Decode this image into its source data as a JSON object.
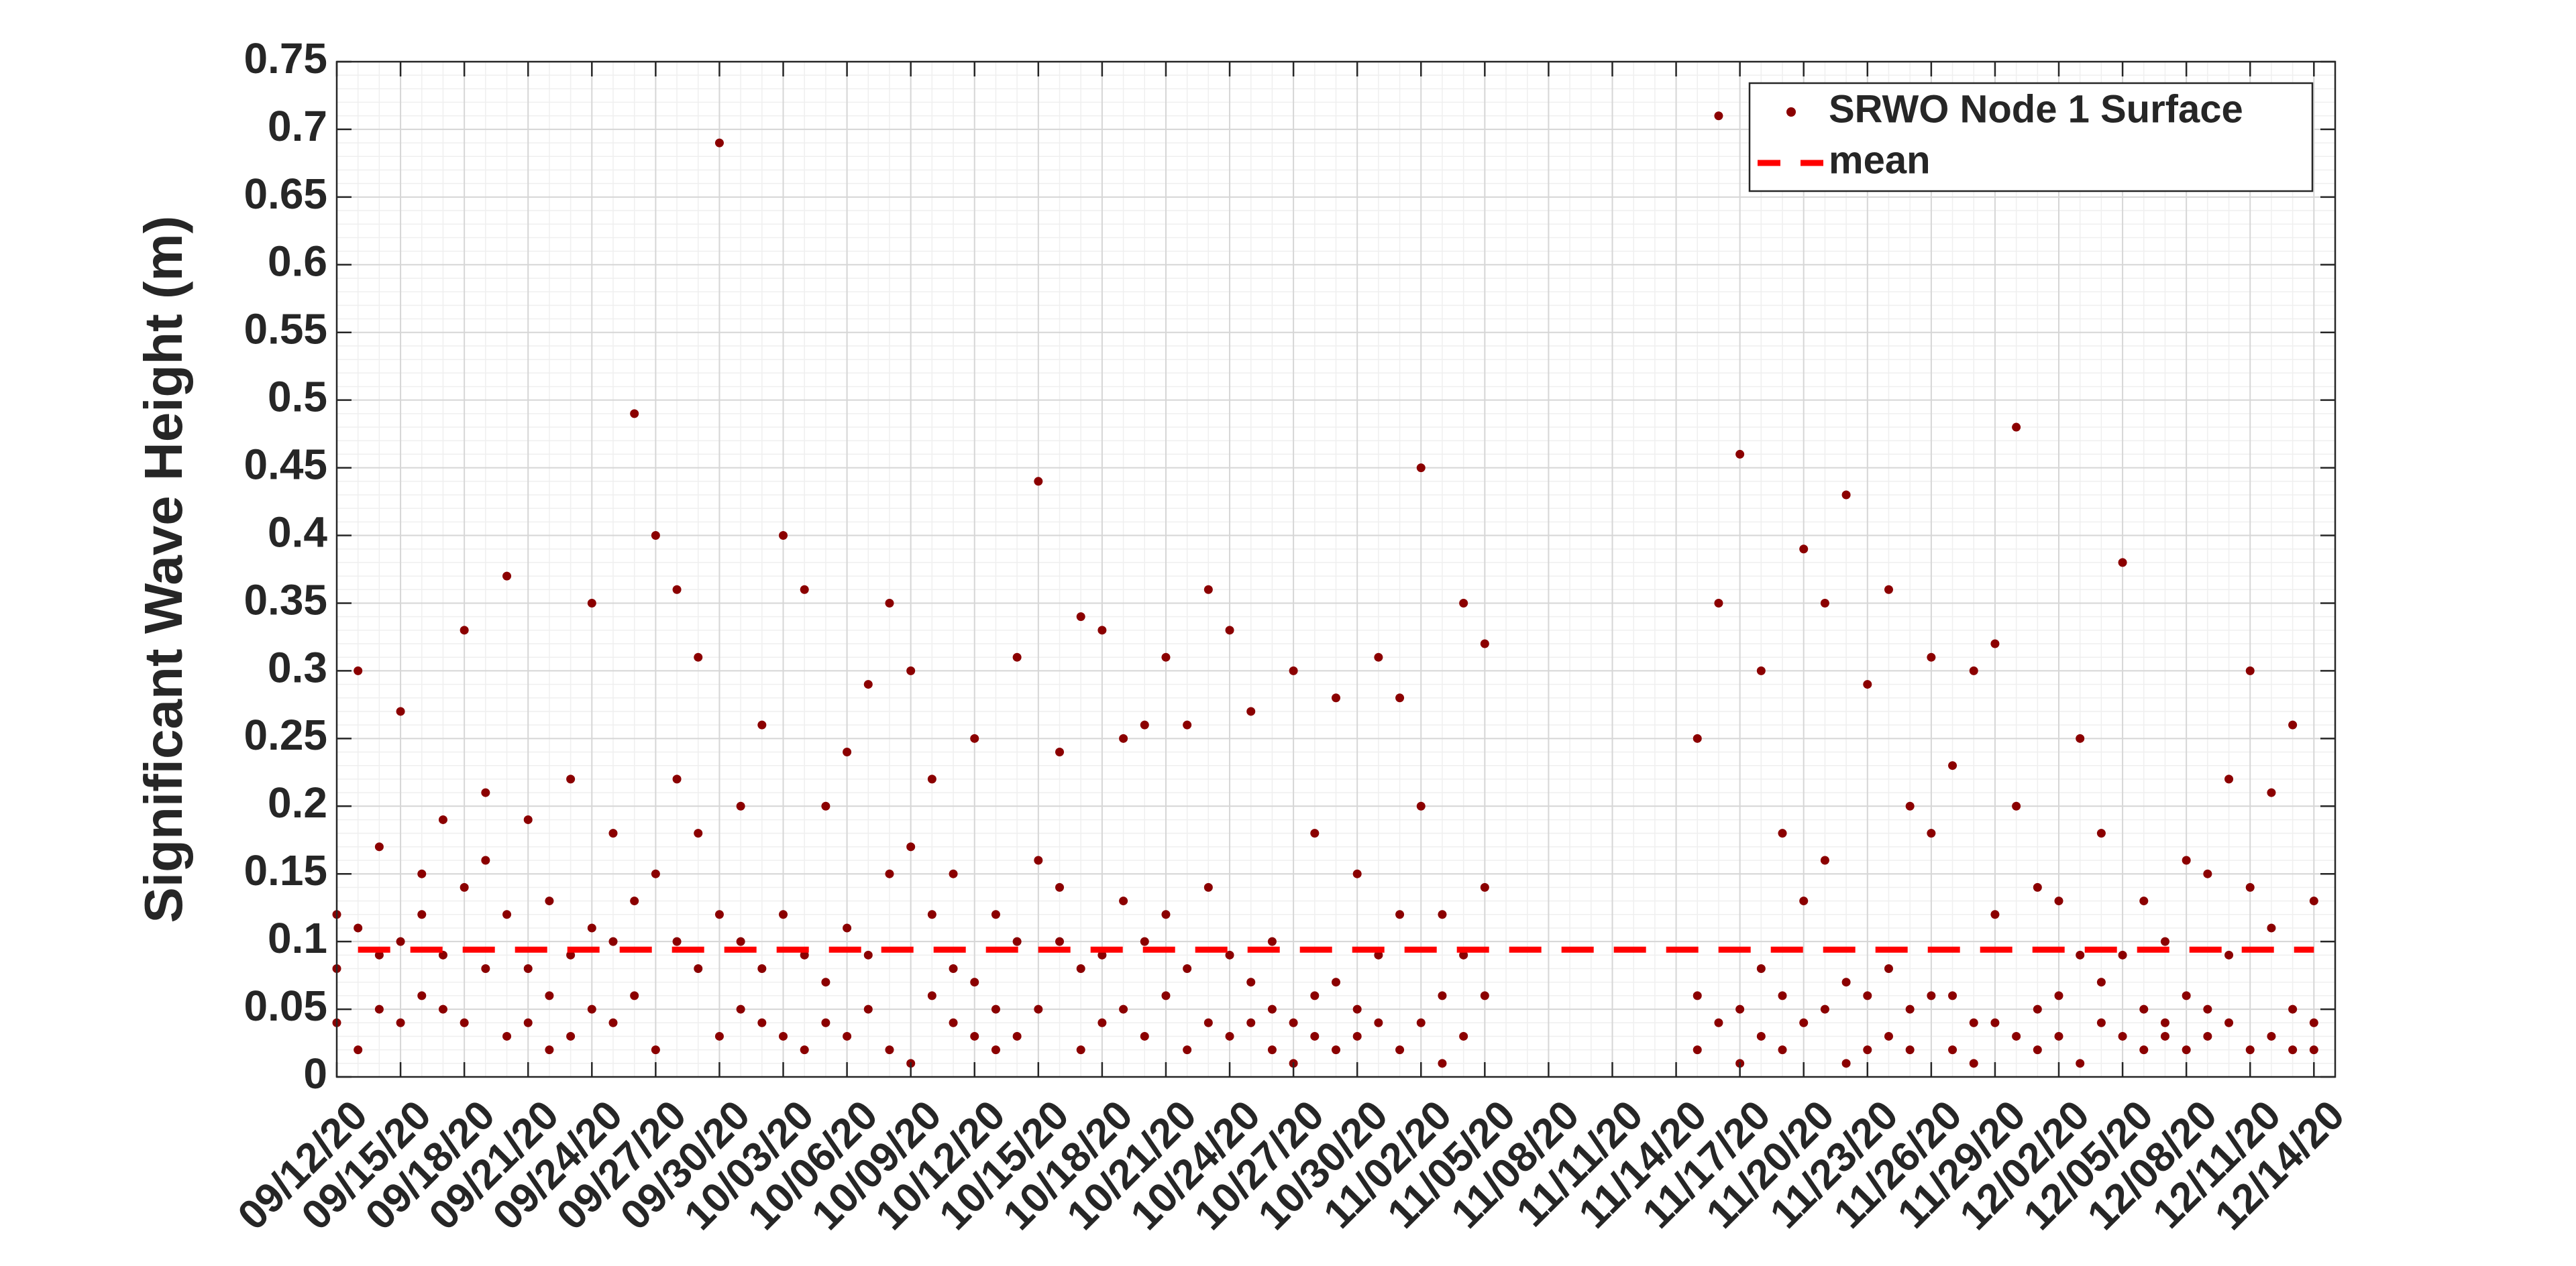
{
  "chart_data": {
    "type": "scatter",
    "ylabel": "Significant Wave Height (m)",
    "xlim": [
      "09/12/20",
      "12/15/20"
    ],
    "xticks": [
      "09/12/20",
      "09/15/20",
      "09/18/20",
      "09/21/20",
      "09/24/20",
      "09/27/20",
      "09/30/20",
      "10/03/20",
      "10/06/20",
      "10/09/20",
      "10/12/20",
      "10/15/20",
      "10/18/20",
      "10/21/20",
      "10/24/20",
      "10/27/20",
      "10/30/20",
      "11/02/20",
      "11/05/20",
      "11/08/20",
      "11/11/20",
      "11/14/20",
      "11/17/20",
      "11/20/20",
      "11/23/20",
      "11/26/20",
      "11/29/20",
      "12/02/20",
      "12/05/20",
      "12/08/20",
      "12/11/20",
      "12/14/20"
    ],
    "ylim": [
      0,
      0.75
    ],
    "yticks": [
      0,
      0.05,
      0.1,
      0.15,
      0.2,
      0.25,
      0.3,
      0.35,
      0.4,
      0.45,
      0.5,
      0.55,
      0.6,
      0.65,
      0.7,
      0.75
    ],
    "grid": true,
    "minor_grid": true,
    "legend": "northeast",
    "series": [
      {
        "name": "SRWO Node 1 Surface",
        "color": "#8b0000",
        "marker": "dot",
        "x": [
          "09/12/20",
          "09/12/20",
          "09/12/20",
          "09/13/20",
          "09/13/20",
          "09/13/20",
          "09/14/20",
          "09/14/20",
          "09/14/20",
          "09/15/20",
          "09/15/20",
          "09/15/20",
          "09/16/20",
          "09/16/20",
          "09/16/20",
          "09/17/20",
          "09/17/20",
          "09/17/20",
          "09/18/20",
          "09/18/20",
          "09/18/20",
          "09/19/20",
          "09/19/20",
          "09/19/20",
          "09/20/20",
          "09/20/20",
          "09/20/20",
          "09/21/20",
          "09/21/20",
          "09/21/20",
          "09/22/20",
          "09/22/20",
          "09/22/20",
          "09/23/20",
          "09/23/20",
          "09/23/20",
          "09/24/20",
          "09/24/20",
          "09/24/20",
          "09/25/20",
          "09/25/20",
          "09/25/20",
          "09/26/20",
          "09/26/20",
          "09/26/20",
          "09/27/20",
          "09/27/20",
          "09/27/20",
          "09/28/20",
          "09/28/20",
          "09/28/20",
          "09/29/20",
          "09/29/20",
          "09/29/20",
          "09/30/20",
          "09/30/20",
          "09/30/20",
          "10/01/20",
          "10/01/20",
          "10/01/20",
          "10/02/20",
          "10/02/20",
          "10/02/20",
          "10/03/20",
          "10/03/20",
          "10/03/20",
          "10/04/20",
          "10/04/20",
          "10/04/20",
          "10/05/20",
          "10/05/20",
          "10/05/20",
          "10/06/20",
          "10/06/20",
          "10/06/20",
          "10/07/20",
          "10/07/20",
          "10/07/20",
          "10/08/20",
          "10/08/20",
          "10/08/20",
          "10/09/20",
          "10/09/20",
          "10/09/20",
          "10/10/20",
          "10/10/20",
          "10/10/20",
          "10/11/20",
          "10/11/20",
          "10/11/20",
          "10/12/20",
          "10/12/20",
          "10/12/20",
          "10/13/20",
          "10/13/20",
          "10/13/20",
          "10/14/20",
          "10/14/20",
          "10/14/20",
          "10/15/20",
          "10/15/20",
          "10/15/20",
          "10/16/20",
          "10/16/20",
          "10/16/20",
          "10/17/20",
          "10/17/20",
          "10/17/20",
          "10/18/20",
          "10/18/20",
          "10/18/20",
          "10/19/20",
          "10/19/20",
          "10/19/20",
          "10/20/20",
          "10/20/20",
          "10/20/20",
          "10/21/20",
          "10/21/20",
          "10/21/20",
          "10/22/20",
          "10/22/20",
          "10/22/20",
          "10/23/20",
          "10/23/20",
          "10/23/20",
          "10/24/20",
          "10/24/20",
          "10/24/20",
          "10/25/20",
          "10/25/20",
          "10/25/20",
          "10/26/20",
          "10/26/20",
          "10/26/20",
          "10/27/20",
          "10/27/20",
          "10/27/20",
          "10/28/20",
          "10/28/20",
          "10/28/20",
          "10/29/20",
          "10/29/20",
          "10/29/20",
          "10/30/20",
          "10/30/20",
          "10/30/20",
          "10/31/20",
          "10/31/20",
          "10/31/20",
          "11/01/20",
          "11/01/20",
          "11/01/20",
          "11/02/20",
          "11/02/20",
          "11/02/20",
          "11/03/20",
          "11/03/20",
          "11/03/20",
          "11/04/20",
          "11/04/20",
          "11/04/20",
          "11/05/20",
          "11/05/20",
          "11/05/20",
          "11/15/20",
          "11/15/20",
          "11/15/20",
          "11/16/20",
          "11/16/20",
          "11/16/20",
          "11/17/20",
          "11/17/20",
          "11/17/20",
          "11/18/20",
          "11/18/20",
          "11/18/20",
          "11/19/20",
          "11/19/20",
          "11/19/20",
          "11/20/20",
          "11/20/20",
          "11/20/20",
          "11/21/20",
          "11/21/20",
          "11/21/20",
          "11/22/20",
          "11/22/20",
          "11/22/20",
          "11/23/20",
          "11/23/20",
          "11/23/20",
          "11/24/20",
          "11/24/20",
          "11/24/20",
          "11/25/20",
          "11/25/20",
          "11/25/20",
          "11/26/20",
          "11/26/20",
          "11/26/20",
          "11/27/20",
          "11/27/20",
          "11/27/20",
          "11/28/20",
          "11/28/20",
          "11/28/20",
          "11/29/20",
          "11/29/20",
          "11/29/20",
          "11/30/20",
          "11/30/20",
          "11/30/20",
          "12/01/20",
          "12/01/20",
          "12/01/20",
          "12/02/20",
          "12/02/20",
          "12/02/20",
          "12/03/20",
          "12/03/20",
          "12/03/20",
          "12/04/20",
          "12/04/20",
          "12/04/20",
          "12/05/20",
          "12/05/20",
          "12/05/20",
          "12/06/20",
          "12/06/20",
          "12/06/20",
          "12/07/20",
          "12/07/20",
          "12/07/20",
          "12/08/20",
          "12/08/20",
          "12/08/20",
          "12/09/20",
          "12/09/20",
          "12/09/20",
          "12/10/20",
          "12/10/20",
          "12/10/20",
          "12/11/20",
          "12/11/20",
          "12/11/20",
          "12/12/20",
          "12/12/20",
          "12/12/20",
          "12/13/20",
          "12/13/20",
          "12/13/20",
          "12/14/20",
          "12/14/20",
          "12/14/20"
        ],
        "values": [
          0.04,
          0.08,
          0.12,
          0.02,
          0.11,
          0.3,
          0.05,
          0.09,
          0.17,
          0.04,
          0.1,
          0.27,
          0.06,
          0.12,
          0.15,
          0.05,
          0.09,
          0.19,
          0.04,
          0.14,
          0.33,
          0.08,
          0.16,
          0.21,
          0.03,
          0.12,
          0.37,
          0.04,
          0.08,
          0.19,
          0.02,
          0.06,
          0.13,
          0.03,
          0.09,
          0.22,
          0.05,
          0.11,
          0.35,
          0.04,
          0.1,
          0.18,
          0.06,
          0.13,
          0.49,
          0.02,
          0.15,
          0.4,
          0.1,
          0.22,
          0.36,
          0.08,
          0.18,
          0.31,
          0.03,
          0.12,
          0.69,
          0.05,
          0.1,
          0.2,
          0.04,
          0.08,
          0.26,
          0.03,
          0.12,
          0.4,
          0.02,
          0.09,
          0.36,
          0.04,
          0.07,
          0.2,
          0.03,
          0.11,
          0.24,
          0.05,
          0.09,
          0.29,
          0.02,
          0.15,
          0.35,
          0.01,
          0.17,
          0.3,
          0.06,
          0.12,
          0.22,
          0.04,
          0.08,
          0.15,
          0.03,
          0.07,
          0.25,
          0.02,
          0.05,
          0.12,
          0.03,
          0.1,
          0.31,
          0.05,
          0.16,
          0.44,
          0.1,
          0.14,
          0.24,
          0.02,
          0.08,
          0.34,
          0.04,
          0.09,
          0.33,
          0.05,
          0.13,
          0.25,
          0.03,
          0.1,
          0.26,
          0.06,
          0.12,
          0.31,
          0.02,
          0.08,
          0.26,
          0.04,
          0.14,
          0.36,
          0.03,
          0.09,
          0.33,
          0.04,
          0.07,
          0.27,
          0.02,
          0.05,
          0.1,
          0.01,
          0.04,
          0.3,
          0.03,
          0.06,
          0.18,
          0.02,
          0.07,
          0.28,
          0.03,
          0.05,
          0.15,
          0.04,
          0.09,
          0.31,
          0.02,
          0.12,
          0.28,
          0.04,
          0.2,
          0.45,
          0.01,
          0.06,
          0.12,
          0.03,
          0.09,
          0.35,
          0.06,
          0.14,
          0.32,
          0.02,
          0.06,
          0.25,
          0.04,
          0.35,
          0.71,
          0.01,
          0.05,
          0.46,
          0.03,
          0.08,
          0.3,
          0.02,
          0.06,
          0.18,
          0.04,
          0.13,
          0.39,
          0.05,
          0.16,
          0.35,
          0.01,
          0.07,
          0.43,
          0.02,
          0.06,
          0.29,
          0.03,
          0.08,
          0.36,
          0.02,
          0.05,
          0.2,
          0.06,
          0.18,
          0.31,
          0.02,
          0.06,
          0.23,
          0.01,
          0.04,
          0.3,
          0.04,
          0.12,
          0.32,
          0.03,
          0.2,
          0.48,
          0.02,
          0.05,
          0.14,
          0.03,
          0.06,
          0.13,
          0.01,
          0.09,
          0.25,
          0.04,
          0.07,
          0.18,
          0.03,
          0.09,
          0.38,
          0.02,
          0.05,
          0.13,
          0.03,
          0.04,
          0.1,
          0.02,
          0.06,
          0.16,
          0.03,
          0.05,
          0.15,
          0.04,
          0.09,
          0.22,
          0.02,
          0.14,
          0.3,
          0.03,
          0.11,
          0.21,
          0.02,
          0.05,
          0.26,
          0.02,
          0.04,
          0.13
        ]
      },
      {
        "name": "mean",
        "color": "#ff0000",
        "line": "dashed",
        "x": [
          "09/13/20",
          "12/14/20"
        ],
        "values": [
          0.094,
          0.094
        ]
      }
    ]
  }
}
